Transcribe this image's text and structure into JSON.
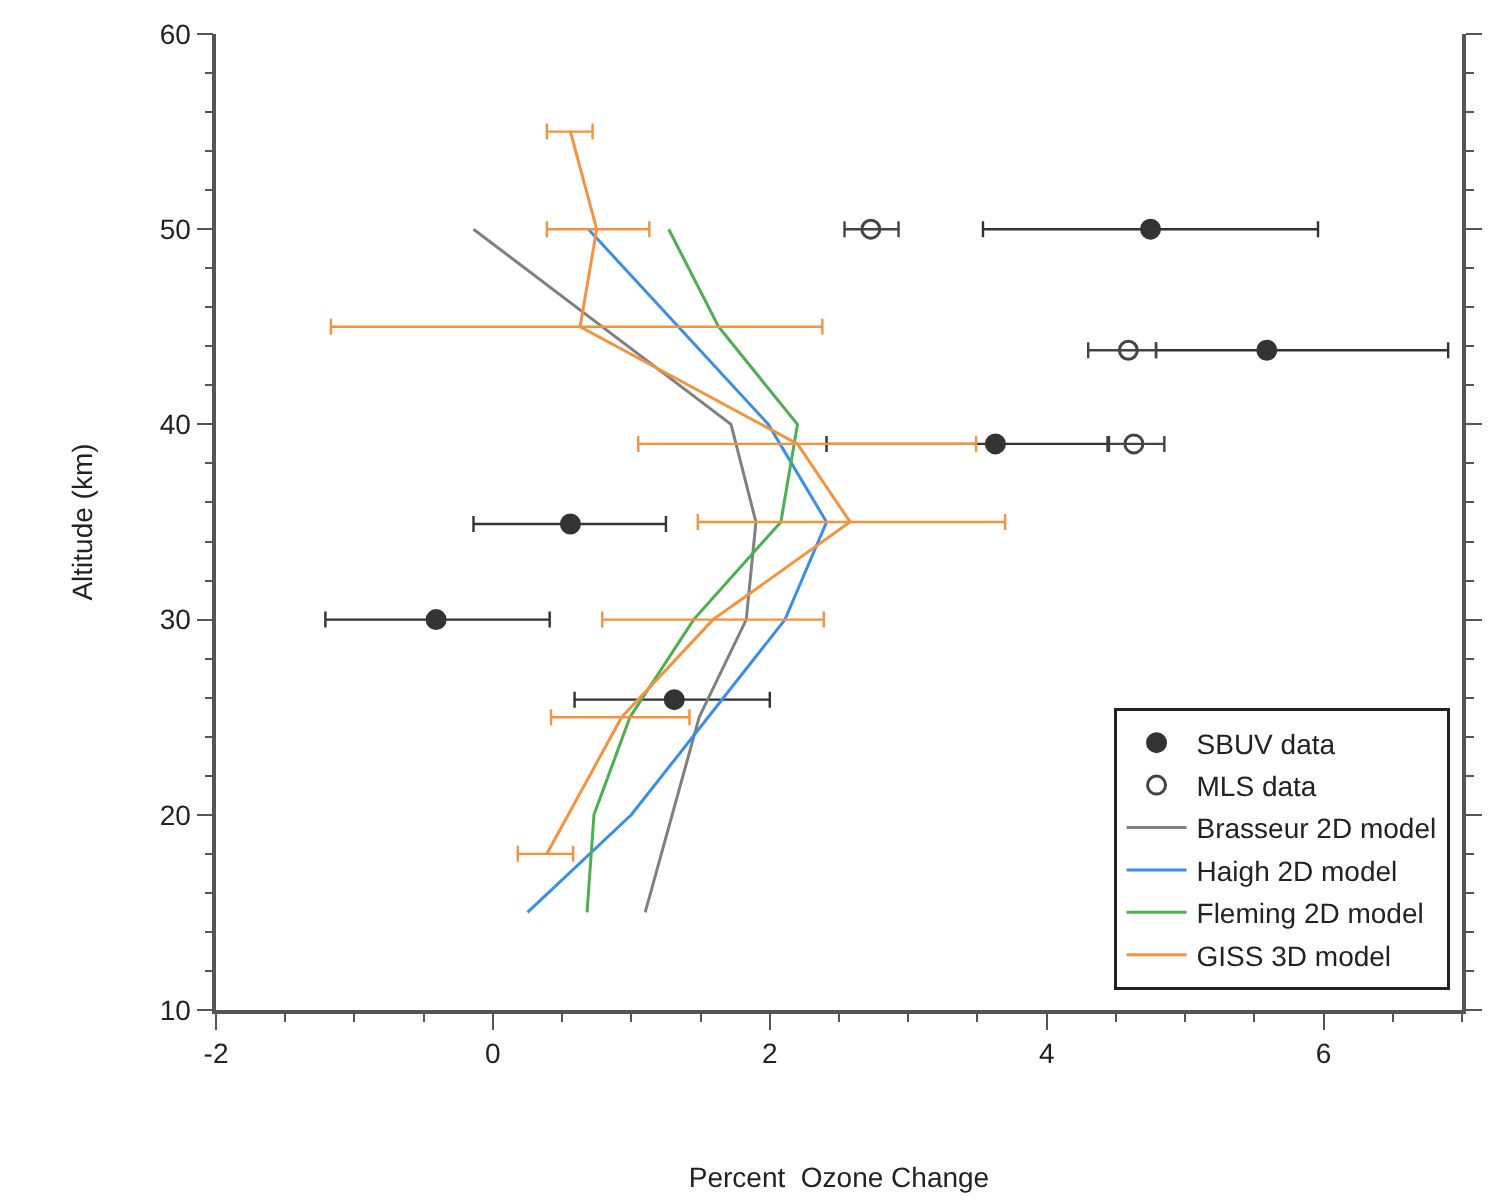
{
  "chart_data": {
    "type": "scatter",
    "xlabel": "Percent  Ozone Change",
    "ylabel": "Altitude (km)",
    "xlim": [
      -2,
      7
    ],
    "xticks": [
      -2,
      0,
      2,
      4,
      6
    ],
    "ylim": [
      10,
      60
    ],
    "yticks": [
      10,
      20,
      30,
      40,
      50,
      60
    ],
    "legend": "bottom right",
    "series": [
      {
        "name": "SBUV data",
        "marker": "circle",
        "color": "#333333",
        "x": [
          4.75,
          5.59,
          3.63,
          0.56,
          -0.41,
          1.31
        ],
        "values": [
          50,
          43.8,
          39,
          34.9,
          30,
          25.9
        ],
        "xerrors": [
          [
            3.54,
            5.96
          ],
          [
            4.79,
            6.9
          ],
          [
            2.41,
            4.44
          ],
          [
            -0.14,
            1.25
          ],
          [
            -1.21,
            0.41
          ],
          [
            0.59,
            2.0
          ]
        ]
      },
      {
        "name": "MLS data",
        "marker": "open circle",
        "color": "#444444",
        "x": [
          2.73,
          4.59,
          4.63
        ],
        "values": [
          50,
          43.8,
          39
        ],
        "xerrors": [
          [
            2.54,
            2.93
          ],
          [
            4.3,
            4.79
          ],
          [
            4.45,
            4.85
          ]
        ]
      },
      {
        "name": "Brasseur 2D model",
        "type": "line",
        "color": "#808080",
        "x": [
          -0.14,
          1.72,
          1.9,
          1.83,
          1.49,
          1.1
        ],
        "values": [
          50,
          40,
          35,
          30,
          25,
          15
        ]
      },
      {
        "name": "Haigh 2D model",
        "type": "line",
        "color": "#3a8ee6",
        "x": [
          0.69,
          1.99,
          2.41,
          2.11,
          1.0,
          0.25
        ],
        "values": [
          50,
          40,
          35,
          30,
          20,
          15
        ]
      },
      {
        "name": "Fleming 2D model",
        "type": "line",
        "color": "#4caf50",
        "x": [
          1.27,
          1.63,
          2.2,
          2.08,
          1.45,
          0.99,
          0.73,
          0.68
        ],
        "values": [
          50,
          45,
          40,
          35,
          30,
          25,
          20,
          15
        ]
      },
      {
        "name": "GISS 3D model",
        "type": "line",
        "color": "#f5923e",
        "x": [
          0.56,
          0.75,
          0.63,
          2.2,
          2.58,
          1.59,
          0.93,
          0.39
        ],
        "values": [
          55,
          50,
          45,
          39,
          35,
          30,
          25,
          18
        ],
        "xerrors": [
          [
            0.39,
            0.72
          ],
          [
            0.39,
            1.13
          ],
          [
            -1.17,
            2.38
          ],
          [
            1.05,
            3.49
          ],
          [
            1.48,
            3.7
          ],
          [
            0.79,
            2.39
          ],
          [
            0.42,
            1.42
          ],
          [
            0.18,
            0.58
          ]
        ]
      }
    ]
  }
}
